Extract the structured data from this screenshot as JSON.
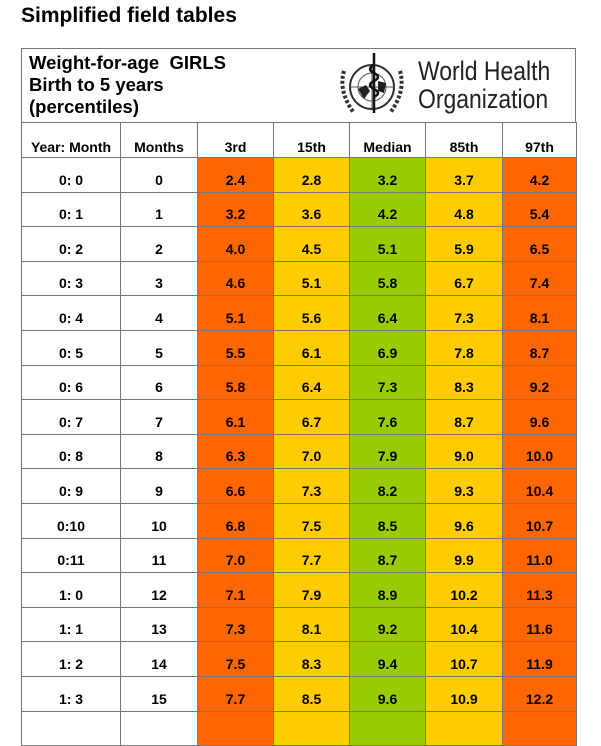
{
  "page_title": "Simplified field tables",
  "table_title": [
    "Weight-for-age  GIRLS",
    "Birth to 5 years",
    "(percentiles)"
  ],
  "logo": {
    "line1": "World Health",
    "line2": "Organization"
  },
  "colors": {
    "outer": "#ff6600",
    "inner": "#ffcc00",
    "median": "#99cc00"
  },
  "headers": [
    "Year: Month",
    "Months",
    "3rd",
    "15th",
    "Median",
    "85th",
    "97th"
  ],
  "rows": [
    [
      "0: 0",
      "0",
      "2.4",
      "2.8",
      "3.2",
      "3.7",
      "4.2"
    ],
    [
      "0: 1",
      "1",
      "3.2",
      "3.6",
      "4.2",
      "4.8",
      "5.4"
    ],
    [
      "0: 2",
      "2",
      "4.0",
      "4.5",
      "5.1",
      "5.9",
      "6.5"
    ],
    [
      "0: 3",
      "3",
      "4.6",
      "5.1",
      "5.8",
      "6.7",
      "7.4"
    ],
    [
      "0: 4",
      "4",
      "5.1",
      "5.6",
      "6.4",
      "7.3",
      "8.1"
    ],
    [
      "0: 5",
      "5",
      "5.5",
      "6.1",
      "6.9",
      "7.8",
      "8.7"
    ],
    [
      "0: 6",
      "6",
      "5.8",
      "6.4",
      "7.3",
      "8.3",
      "9.2"
    ],
    [
      "0: 7",
      "7",
      "6.1",
      "6.7",
      "7.6",
      "8.7",
      "9.6"
    ],
    [
      "0: 8",
      "8",
      "6.3",
      "7.0",
      "7.9",
      "9.0",
      "10.0"
    ],
    [
      "0: 9",
      "9",
      "6.6",
      "7.3",
      "8.2",
      "9.3",
      "10.4"
    ],
    [
      "0:10",
      "10",
      "6.8",
      "7.5",
      "8.5",
      "9.6",
      "10.7"
    ],
    [
      "0:11",
      "11",
      "7.0",
      "7.7",
      "8.7",
      "9.9",
      "11.0"
    ],
    [
      "1: 0",
      "12",
      "7.1",
      "7.9",
      "8.9",
      "10.2",
      "11.3"
    ],
    [
      "1: 1",
      "13",
      "7.3",
      "8.1",
      "9.2",
      "10.4",
      "11.6"
    ],
    [
      "1: 2",
      "14",
      "7.5",
      "8.3",
      "9.4",
      "10.7",
      "11.9"
    ],
    [
      "1: 3",
      "15",
      "7.7",
      "8.5",
      "9.6",
      "10.9",
      "12.2"
    ],
    [
      "",
      "",
      "",
      "",
      "",
      "",
      ""
    ]
  ]
}
